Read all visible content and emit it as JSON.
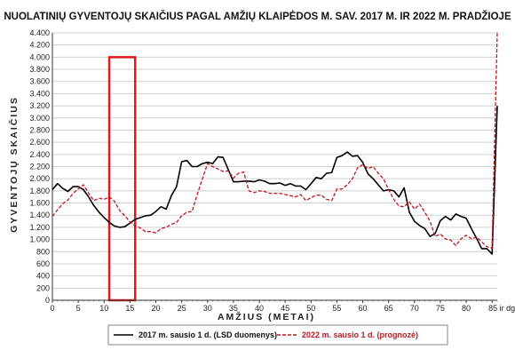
{
  "chart_data": {
    "type": "line",
    "title": "NUOLATINIŲ GYVENTOJŲ SKAIČIUS PAGAL AMŽIŲ KLAIPĖDOS M. SAV. 2017 M. IR 2022 M. PRADŽIOJE",
    "xlabel": "AMŽIUS (METAI)",
    "ylabel": "GYVENTOJŲ SKAIČIUS",
    "xlim": [
      0,
      86
    ],
    "ylim": [
      0,
      4400
    ],
    "x_ticks": [
      {
        "v": 0,
        "label": "0"
      },
      {
        "v": 5,
        "label": "5"
      },
      {
        "v": 10,
        "label": "10"
      },
      {
        "v": 15,
        "label": "15"
      },
      {
        "v": 20,
        "label": "20"
      },
      {
        "v": 25,
        "label": "25"
      },
      {
        "v": 30,
        "label": "30"
      },
      {
        "v": 35,
        "label": "35"
      },
      {
        "v": 40,
        "label": "40"
      },
      {
        "v": 45,
        "label": "45"
      },
      {
        "v": 50,
        "label": "50"
      },
      {
        "v": 55,
        "label": "55"
      },
      {
        "v": 60,
        "label": "60"
      },
      {
        "v": 65,
        "label": "65"
      },
      {
        "v": 70,
        "label": "70"
      },
      {
        "v": 75,
        "label": "75"
      },
      {
        "v": 80,
        "label": "80"
      },
      {
        "v": 85,
        "label": "85 ir dg."
      }
    ],
    "y_ticks": [
      {
        "v": 0,
        "label": "0"
      },
      {
        "v": 200,
        "label": "200"
      },
      {
        "v": 400,
        "label": "400"
      },
      {
        "v": 600,
        "label": "600"
      },
      {
        "v": 800,
        "label": "800"
      },
      {
        "v": 1000,
        "label": "1.000"
      },
      {
        "v": 1200,
        "label": "1.200"
      },
      {
        "v": 1400,
        "label": "1.400"
      },
      {
        "v": 1600,
        "label": "1.600"
      },
      {
        "v": 1800,
        "label": "1.800"
      },
      {
        "v": 2000,
        "label": "2.000"
      },
      {
        "v": 2200,
        "label": "2.200"
      },
      {
        "v": 2400,
        "label": "2.400"
      },
      {
        "v": 2600,
        "label": "2.600"
      },
      {
        "v": 2800,
        "label": "2.800"
      },
      {
        "v": 3000,
        "label": "3.000"
      },
      {
        "v": 3200,
        "label": "3.200"
      },
      {
        "v": 3400,
        "label": "3.400"
      },
      {
        "v": 3600,
        "label": "3.600"
      },
      {
        "v": 3800,
        "label": "3.800"
      },
      {
        "v": 4000,
        "label": "4.000"
      },
      {
        "v": 4200,
        "label": "4.200"
      },
      {
        "v": 4400,
        "label": "4.400"
      }
    ],
    "grid": "horizontal",
    "legend_position": "bottom",
    "highlight": {
      "x": [
        11,
        16
      ],
      "y": [
        0,
        4000
      ],
      "color": "#e2191c"
    },
    "series": [
      {
        "name": "2017 m. sausio 1 d. (LSD duomenys)",
        "color": "#000000",
        "dash": "solid",
        "x": [
          0,
          1,
          2,
          3,
          4,
          5,
          6,
          7,
          8,
          9,
          10,
          11,
          12,
          13,
          14,
          15,
          16,
          17,
          18,
          19,
          20,
          21,
          22,
          23,
          24,
          25,
          26,
          27,
          28,
          29,
          30,
          31,
          32,
          33,
          34,
          35,
          36,
          37,
          38,
          39,
          40,
          41,
          42,
          43,
          44,
          45,
          46,
          47,
          48,
          49,
          50,
          51,
          52,
          53,
          54,
          55,
          56,
          57,
          58,
          59,
          60,
          61,
          62,
          63,
          64,
          65,
          66,
          67,
          68,
          69,
          70,
          71,
          72,
          73,
          74,
          75,
          76,
          77,
          78,
          79,
          80,
          81,
          82,
          83,
          84,
          85,
          86
        ],
        "values": [
          1820,
          1920,
          1840,
          1790,
          1870,
          1870,
          1820,
          1700,
          1560,
          1450,
          1360,
          1280,
          1220,
          1200,
          1210,
          1270,
          1330,
          1360,
          1390,
          1400,
          1460,
          1540,
          1500,
          1720,
          1870,
          2280,
          2300,
          2200,
          2200,
          2250,
          2270,
          2250,
          2360,
          2350,
          2150,
          1950,
          1950,
          1960,
          1960,
          1950,
          1980,
          1960,
          1920,
          1920,
          1930,
          1890,
          1920,
          1880,
          1880,
          1820,
          1920,
          2020,
          2000,
          2090,
          2100,
          2350,
          2380,
          2440,
          2370,
          2380,
          2270,
          2080,
          2000,
          1900,
          1800,
          1820,
          1800,
          1700,
          1850,
          1450,
          1300,
          1230,
          1180,
          1050,
          1100,
          1310,
          1380,
          1320,
          1420,
          1380,
          1350,
          1180,
          1020,
          850,
          850,
          760,
          3200
        ]
      },
      {
        "name": "2022 m. sausio 1 d. (prognozė)",
        "color": "#c0161c",
        "dash": "dashed",
        "x": [
          0,
          1,
          2,
          3,
          4,
          5,
          6,
          7,
          8,
          9,
          10,
          11,
          12,
          13,
          14,
          15,
          16,
          17,
          18,
          19,
          20,
          21,
          22,
          23,
          24,
          25,
          26,
          27,
          28,
          29,
          30,
          31,
          32,
          33,
          34,
          35,
          36,
          37,
          38,
          39,
          40,
          41,
          42,
          43,
          44,
          45,
          46,
          47,
          48,
          49,
          50,
          51,
          52,
          53,
          54,
          55,
          56,
          57,
          58,
          59,
          60,
          61,
          62,
          63,
          64,
          65,
          66,
          67,
          68,
          69,
          70,
          71,
          72,
          73,
          74,
          75,
          76,
          77,
          78,
          79,
          80,
          81,
          82,
          83,
          84,
          85,
          86
        ],
        "values": [
          1380,
          1490,
          1590,
          1650,
          1760,
          1830,
          1900,
          1760,
          1640,
          1680,
          1660,
          1700,
          1630,
          1480,
          1390,
          1290,
          1230,
          1190,
          1130,
          1130,
          1110,
          1180,
          1200,
          1250,
          1280,
          1390,
          1450,
          1460,
          1740,
          2000,
          2250,
          2200,
          2160,
          2120,
          2130,
          2010,
          2090,
          2110,
          1800,
          1770,
          1800,
          1790,
          1760,
          1760,
          1760,
          1740,
          1720,
          1700,
          1740,
          1640,
          1690,
          1730,
          1730,
          1660,
          1640,
          1830,
          1830,
          1900,
          2000,
          2180,
          2230,
          2170,
          2200,
          2090,
          2000,
          1820,
          1660,
          1550,
          1540,
          1620,
          1500,
          1580,
          1450,
          1300,
          1050,
          1090,
          1010,
          990,
          900,
          1010,
          1070,
          1010,
          1040,
          960,
          880,
          860,
          4400
        ]
      }
    ]
  }
}
